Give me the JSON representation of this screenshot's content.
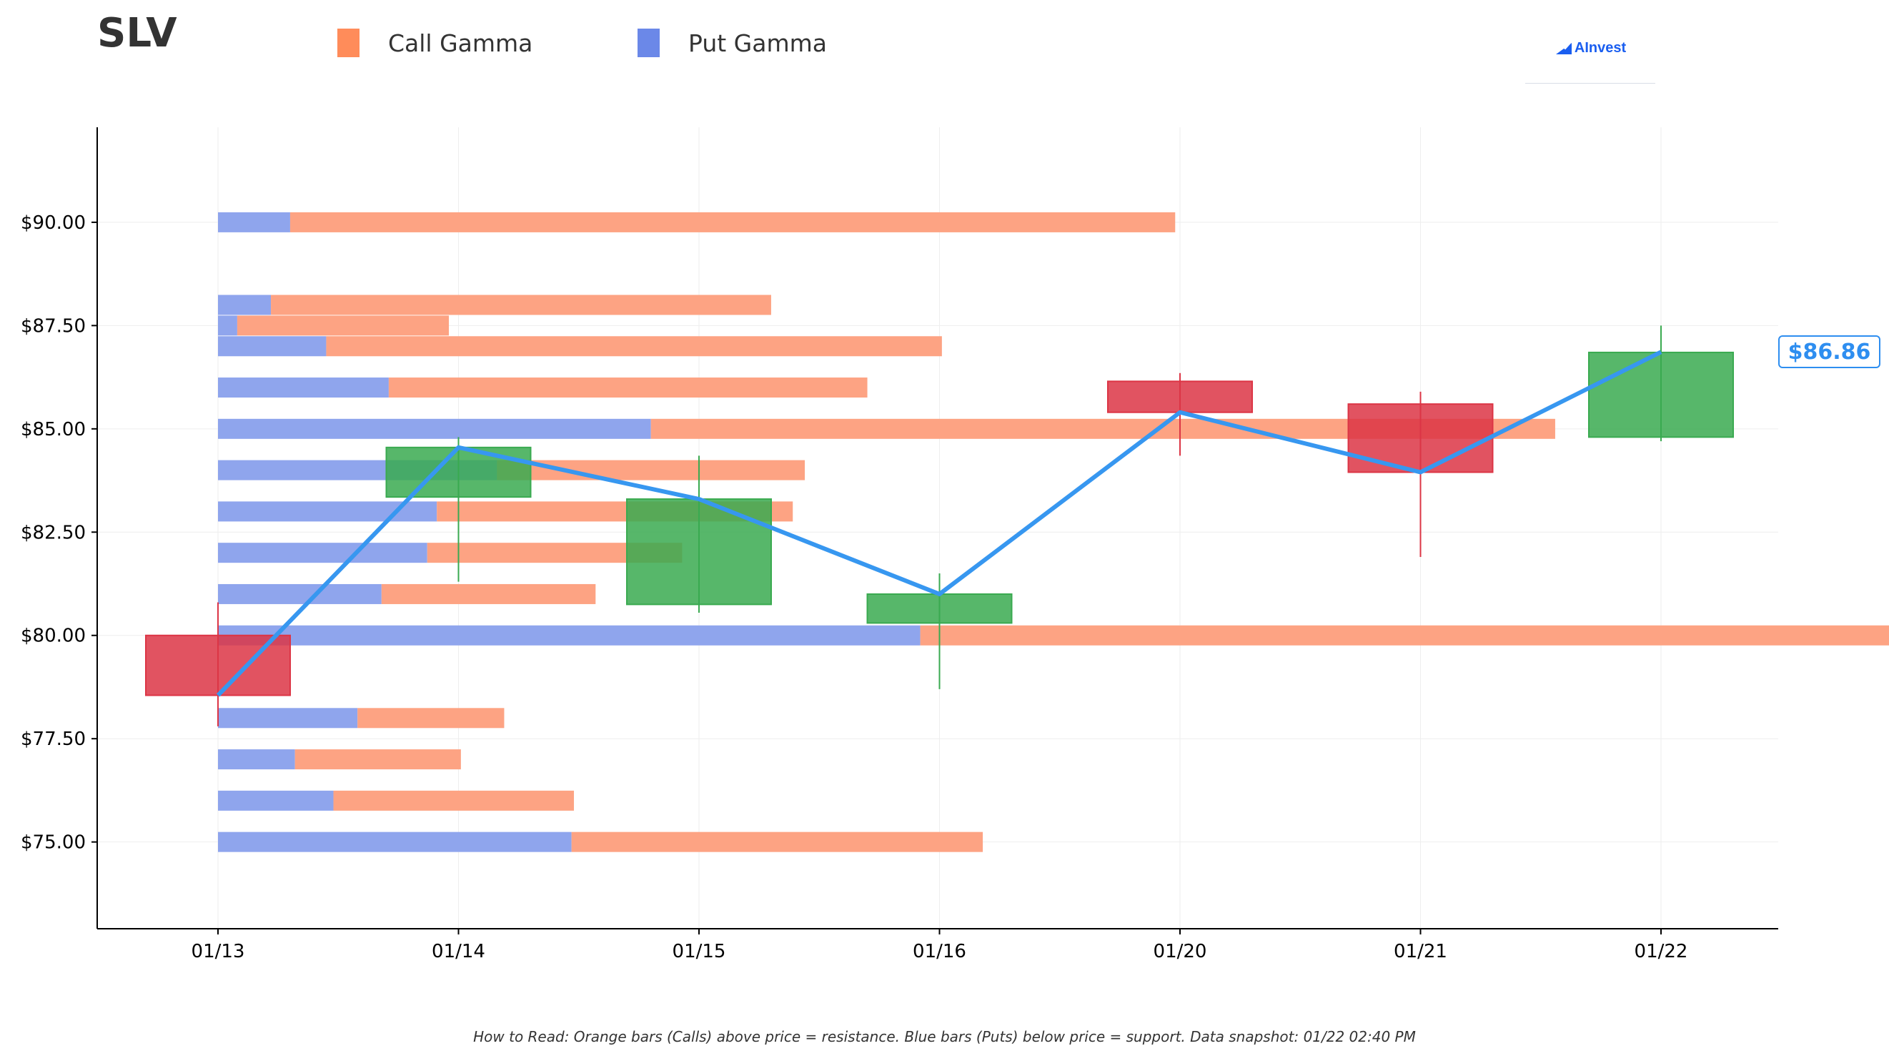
{
  "header": {
    "ticker": "SLV",
    "legend": [
      {
        "label": "Call Gamma",
        "color": "#ff8c5a"
      },
      {
        "label": "Put Gamma",
        "color": "#6b88e8"
      }
    ],
    "brand": "AInvest"
  },
  "footnote": "How to Read: Orange bars (Calls) above price = resistance. Blue bars (Puts) below price = support. Data snapshot: 01/22 02:40 PM",
  "colors": {
    "call": "#fda383",
    "put": "#8fa5ed",
    "up": "#3aaa50",
    "down": "#dc3545",
    "price_line": "#3797f0",
    "grid": "#eeeeee",
    "axis": "#000000"
  },
  "chart_data": {
    "type": "candlestick",
    "categories": [
      "01/13",
      "01/14",
      "01/15",
      "01/16",
      "01/20",
      "01/21",
      "01/22"
    ],
    "y_ticks": [
      "$75.00",
      "$77.50",
      "$80.00",
      "$82.50",
      "$85.00",
      "$87.50",
      "$90.00"
    ],
    "y_tick_values": [
      75,
      77.5,
      80,
      82.5,
      85,
      87.5,
      90
    ],
    "ylim": [
      72.9,
      92.3
    ],
    "grid": true,
    "candles": [
      {
        "date": "01/13",
        "open": 80.0,
        "high": 80.8,
        "low": 77.8,
        "close": 78.55
      },
      {
        "date": "01/14",
        "open": 83.35,
        "high": 84.8,
        "low": 81.3,
        "close": 84.55
      },
      {
        "date": "01/15",
        "open": 80.75,
        "high": 84.35,
        "low": 80.55,
        "close": 83.3
      },
      {
        "date": "01/16",
        "open": 80.3,
        "high": 81.5,
        "low": 78.7,
        "close": 81.0
      },
      {
        "date": "01/20",
        "open": 86.15,
        "high": 86.35,
        "low": 84.35,
        "close": 85.4
      },
      {
        "date": "01/21",
        "open": 85.6,
        "high": 85.9,
        "low": 81.9,
        "close": 83.95
      },
      {
        "date": "01/22",
        "open": 84.8,
        "high": 87.5,
        "low": 84.7,
        "close": 86.85
      }
    ],
    "price_line": [
      78.55,
      84.55,
      83.3,
      81.0,
      85.4,
      83.95,
      86.86
    ],
    "current_price_label": "$86.86",
    "gamma_bars": [
      {
        "strike": 90.0,
        "put": 0.3,
        "call": 3.68
      },
      {
        "strike": 88.0,
        "put": 0.22,
        "call": 2.08
      },
      {
        "strike": 87.5,
        "put": 0.08,
        "call": 0.88
      },
      {
        "strike": 87.0,
        "put": 0.45,
        "call": 2.56
      },
      {
        "strike": 86.0,
        "put": 0.71,
        "call": 1.99
      },
      {
        "strike": 85.0,
        "put": 1.8,
        "call": 3.76
      },
      {
        "strike": 84.0,
        "put": 1.16,
        "call": 1.28
      },
      {
        "strike": 83.0,
        "put": 0.91,
        "call": 1.48
      },
      {
        "strike": 82.0,
        "put": 0.87,
        "call": 1.06
      },
      {
        "strike": 81.0,
        "put": 0.68,
        "call": 0.89
      },
      {
        "strike": 80.0,
        "put": 2.92,
        "call": 4.07
      },
      {
        "strike": 78.0,
        "put": 0.58,
        "call": 0.61
      },
      {
        "strike": 77.0,
        "put": 0.32,
        "call": 0.69
      },
      {
        "strike": 76.0,
        "put": 0.48,
        "call": 1.0
      },
      {
        "strike": 75.0,
        "put": 1.47,
        "call": 1.71
      }
    ]
  }
}
